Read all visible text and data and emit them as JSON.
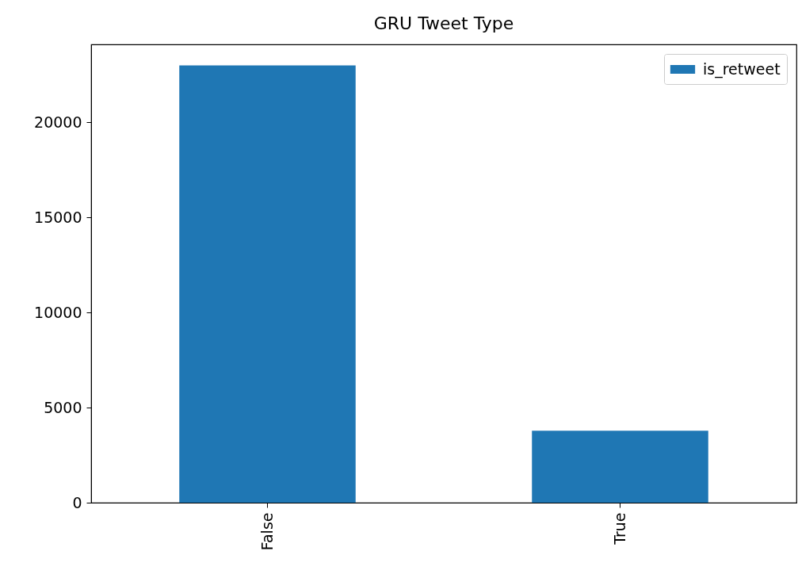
{
  "chart_data": {
    "type": "bar",
    "title": "GRU Tweet Type",
    "categories": [
      "False",
      "True"
    ],
    "series": [
      {
        "name": "is_retweet",
        "color": "#1f77b4",
        "values": [
          22990,
          3780
        ]
      }
    ],
    "ylim": [
      0,
      24100
    ],
    "yticks": [
      0,
      5000,
      10000,
      15000,
      20000
    ],
    "legend": "top right"
  }
}
